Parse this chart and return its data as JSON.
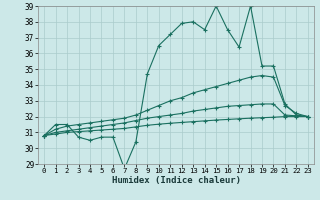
{
  "xlabel": "Humidex (Indice chaleur)",
  "bg_color": "#cce8e8",
  "grid_color": "#aacccc",
  "line_color": "#1a7060",
  "xlim": [
    -0.5,
    23.5
  ],
  "ylim": [
    29,
    39
  ],
  "yticks": [
    29,
    30,
    31,
    32,
    33,
    34,
    35,
    36,
    37,
    38,
    39
  ],
  "xticks": [
    0,
    1,
    2,
    3,
    4,
    5,
    6,
    7,
    8,
    9,
    10,
    11,
    12,
    13,
    14,
    15,
    16,
    17,
    18,
    19,
    20,
    21,
    22,
    23
  ],
  "series": [
    {
      "x": [
        0,
        1,
        2,
        3,
        4,
        5,
        6,
        7,
        8,
        9,
        10,
        11,
        12,
        13,
        14,
        15,
        16,
        17,
        18,
        19,
        20,
        21,
        22,
        23
      ],
      "y": [
        30.8,
        31.5,
        31.5,
        30.7,
        30.5,
        30.7,
        30.7,
        28.7,
        30.4,
        34.7,
        36.5,
        37.2,
        37.9,
        38.0,
        37.5,
        39.0,
        37.5,
        36.4,
        39.0,
        35.2,
        35.2,
        32.8,
        32.1,
        32.0
      ]
    },
    {
      "x": [
        0,
        1,
        2,
        3,
        4,
        5,
        6,
        7,
        8,
        9,
        10,
        11,
        12,
        13,
        14,
        15,
        16,
        17,
        18,
        19,
        20,
        21,
        22,
        23
      ],
      "y": [
        30.8,
        31.2,
        31.4,
        31.5,
        31.6,
        31.7,
        31.8,
        31.9,
        32.1,
        32.4,
        32.7,
        33.0,
        33.2,
        33.5,
        33.7,
        33.9,
        34.1,
        34.3,
        34.5,
        34.6,
        34.5,
        32.7,
        32.2,
        32.0
      ]
    },
    {
      "x": [
        0,
        1,
        2,
        3,
        4,
        5,
        6,
        7,
        8,
        9,
        10,
        11,
        12,
        13,
        14,
        15,
        16,
        17,
        18,
        19,
        20,
        21,
        22,
        23
      ],
      "y": [
        30.8,
        31.0,
        31.1,
        31.2,
        31.3,
        31.4,
        31.5,
        31.6,
        31.75,
        31.9,
        32.0,
        32.1,
        32.2,
        32.35,
        32.45,
        32.55,
        32.65,
        32.7,
        32.75,
        32.8,
        32.8,
        32.1,
        32.05,
        32.0
      ]
    },
    {
      "x": [
        0,
        1,
        2,
        3,
        4,
        5,
        6,
        7,
        8,
        9,
        10,
        11,
        12,
        13,
        14,
        15,
        16,
        17,
        18,
        19,
        20,
        21,
        22,
        23
      ],
      "y": [
        30.8,
        30.9,
        31.0,
        31.05,
        31.1,
        31.15,
        31.2,
        31.25,
        31.35,
        31.45,
        31.52,
        31.58,
        31.63,
        31.68,
        31.73,
        31.78,
        31.82,
        31.86,
        31.9,
        31.93,
        31.96,
        32.0,
        32.0,
        32.0
      ]
    }
  ]
}
